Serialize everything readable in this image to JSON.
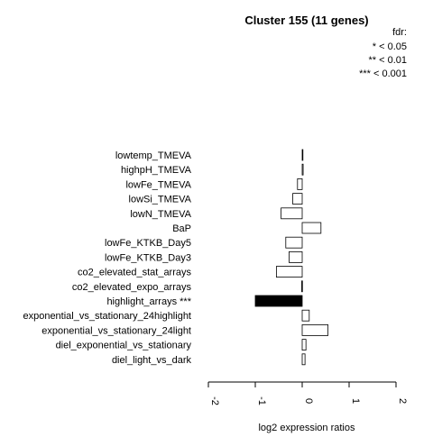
{
  "chart_data": {
    "type": "bar",
    "orientation": "horizontal",
    "title": "Cluster 155 (11 genes)",
    "xlabel": "log2 expression ratios",
    "ylabel": "",
    "xlim": [
      -2,
      2
    ],
    "xticks": [
      "-2",
      "-1",
      "0",
      "1",
      "2"
    ],
    "grid": false,
    "legend": {
      "placement": "top-right",
      "title": "fdr:",
      "entries": [
        "* < 0.05",
        "** < 0.01",
        "*** < 0.001"
      ]
    },
    "categories": [
      "lowtemp_TMEVA",
      "highpH_TMEVA",
      "lowFe_TMEVA",
      "lowSi_TMEVA",
      "lowN_TMEVA",
      "BaP",
      "lowFe_KTKB_Day5",
      "lowFe_KTKB_Day3",
      "co2_elevated_stat_arrays",
      "co2_elevated_expo_arrays",
      "highlight_arrays ***",
      "exponential_vs_stationary_24highlight",
      "exponential_vs_stationary_24light",
      "diel_exponential_vs_stationary",
      "diel_light_vs_dark"
    ],
    "values": [
      0.01,
      0.02,
      -0.1,
      -0.2,
      -0.45,
      0.4,
      -0.35,
      -0.28,
      -0.55,
      -0.01,
      -1.0,
      0.15,
      0.55,
      0.08,
      0.06
    ],
    "highlight": [
      false,
      false,
      false,
      false,
      false,
      false,
      false,
      false,
      false,
      false,
      true,
      false,
      false,
      false,
      false
    ],
    "colors": {
      "bar_fill": "#ffffff",
      "highlight_fill": "#000000",
      "stroke": "#000000"
    }
  }
}
